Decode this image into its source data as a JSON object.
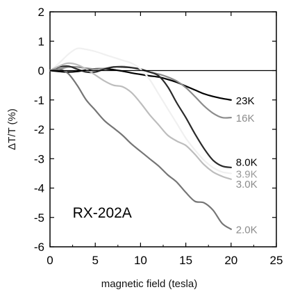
{
  "chart_data": {
    "type": "line",
    "xlabel": "magnetic field (tesla)",
    "ylabel": "ΔT/T (%)",
    "xlim": [
      0,
      25
    ],
    "ylim": [
      -6,
      2
    ],
    "xticks": [
      0,
      5,
      10,
      15,
      20,
      25
    ],
    "yticks": [
      2,
      1,
      0,
      -1,
      -2,
      -3,
      -4,
      -5,
      -6
    ],
    "grid": false,
    "legend": "labels at line ends (right)",
    "annotation": "RX-202A",
    "reference_line_y": 0,
    "series": [
      {
        "name": "23K",
        "color": "#000000",
        "x": [
          0,
          1,
          2,
          3,
          4,
          5,
          6,
          7,
          8,
          9,
          10,
          11,
          12,
          13,
          14,
          15,
          16,
          17,
          18,
          19,
          20
        ],
        "y": [
          0.0,
          -0.03,
          -0.05,
          -0.03,
          0.02,
          0.06,
          0.06,
          0.03,
          -0.02,
          -0.08,
          -0.13,
          -0.18,
          -0.22,
          -0.3,
          -0.4,
          -0.53,
          -0.66,
          -0.79,
          -0.88,
          -0.95,
          -1.0
        ]
      },
      {
        "name": "16K",
        "color": "#8c8c8c",
        "x": [
          0,
          1,
          2,
          3,
          4,
          5,
          6,
          7,
          8,
          9,
          10,
          11,
          12,
          13,
          14,
          15,
          16,
          17,
          18,
          19,
          20
        ],
        "y": [
          0.0,
          0.05,
          0.12,
          0.12,
          0.08,
          0.05,
          0.07,
          0.12,
          0.14,
          0.1,
          0.03,
          -0.05,
          -0.12,
          -0.22,
          -0.36,
          -0.58,
          -0.88,
          -1.2,
          -1.45,
          -1.6,
          -1.6
        ]
      },
      {
        "name": "8.0K",
        "color": "#2a2a2a",
        "x": [
          0,
          1,
          2,
          3,
          4,
          5,
          6,
          7,
          8,
          9,
          10,
          11,
          12,
          13,
          14,
          15,
          16,
          17,
          18,
          19,
          20
        ],
        "y": [
          0.0,
          0.12,
          0.15,
          0.05,
          -0.05,
          -0.05,
          0.05,
          0.12,
          0.12,
          0.1,
          0.05,
          -0.05,
          -0.18,
          -0.55,
          -1.1,
          -1.6,
          -2.15,
          -2.65,
          -3.05,
          -3.25,
          -3.3
        ]
      },
      {
        "name": "3.9K",
        "color": "#f0f0f0",
        "x": [
          0,
          1,
          2,
          3,
          4,
          5,
          6,
          7,
          8,
          9,
          10,
          11,
          12,
          13,
          14,
          15,
          16,
          17,
          18,
          19,
          20
        ],
        "y": [
          0.0,
          0.25,
          0.55,
          0.75,
          0.72,
          0.65,
          0.55,
          0.45,
          0.35,
          0.25,
          0.05,
          -0.3,
          -0.8,
          -1.3,
          -1.8,
          -2.3,
          -2.7,
          -3.05,
          -3.3,
          -3.45,
          -3.5
        ]
      },
      {
        "name": "3.0K",
        "color": "#bdbdbd",
        "x": [
          0,
          1,
          2,
          3,
          4,
          5,
          6,
          7,
          8,
          9,
          10,
          11,
          12,
          13,
          14,
          15,
          16,
          17,
          18,
          19,
          20
        ],
        "y": [
          0.0,
          0.15,
          0.25,
          0.2,
          0.05,
          -0.15,
          -0.35,
          -0.5,
          -0.55,
          -0.75,
          -1.1,
          -1.5,
          -1.85,
          -2.2,
          -2.4,
          -2.55,
          -2.85,
          -3.2,
          -3.45,
          -3.6,
          -3.7
        ]
      },
      {
        "name": "2.0K",
        "color": "#757575",
        "x": [
          0,
          1,
          2,
          3,
          4,
          5,
          6,
          7,
          8,
          9,
          10,
          11,
          12,
          13,
          14,
          15,
          16,
          17,
          18,
          19,
          20
        ],
        "y": [
          0.0,
          0.05,
          -0.1,
          -0.5,
          -1.0,
          -1.35,
          -1.7,
          -1.95,
          -2.2,
          -2.5,
          -2.75,
          -3.0,
          -3.25,
          -3.55,
          -3.8,
          -4.15,
          -4.45,
          -4.5,
          -4.75,
          -5.2,
          -5.4
        ]
      }
    ],
    "series_labels": [
      {
        "text": "23K",
        "color": "#000000",
        "y": -1.0
      },
      {
        "text": "16K",
        "color": "#8c8c8c",
        "y": -1.6
      },
      {
        "text": "8.0K",
        "color": "#000000",
        "y": -3.1
      },
      {
        "text": "3.9K",
        "color": "#9a9a9a",
        "y": -3.5
      },
      {
        "text": "3.0K",
        "color": "#8c8c8c",
        "y": -3.85
      },
      {
        "text": "2.0K",
        "color": "#8c8c8c",
        "y": -5.4
      }
    ]
  }
}
